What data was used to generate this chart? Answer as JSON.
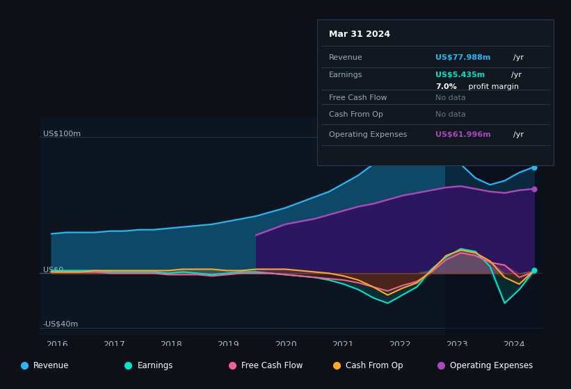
{
  "bg_color": "#0d1117",
  "plot_bg_color": "#0d1520",
  "y_label_top": "US$100m",
  "y_label_zero": "US$0",
  "y_label_bottom": "-US$40m",
  "ylim": [
    -45,
    115
  ],
  "xlim": [
    2015.7,
    2024.5
  ],
  "x_ticks": [
    2016,
    2017,
    2018,
    2019,
    2020,
    2021,
    2022,
    2023,
    2024
  ],
  "tooltip_title": "Mar 31 2024",
  "tooltip_rows": [
    {
      "label": "Revenue",
      "value": "US$77.988m",
      "unit": "/yr",
      "label_color": "#9aaabb",
      "value_color": "#29b6f6",
      "unit_color": "#ffffff"
    },
    {
      "label": "Earnings",
      "value": "US$5.435m",
      "unit": "/yr",
      "label_color": "#9aaabb",
      "value_color": "#00e5cc",
      "unit_color": "#ffffff"
    },
    {
      "label": "",
      "value": "7.0%",
      "unit": " profit margin",
      "label_color": "#9aaabb",
      "value_color": "#ffffff",
      "unit_color": "#ffffff"
    },
    {
      "label": "Free Cash Flow",
      "value": "No data",
      "unit": "",
      "label_color": "#9aaabb",
      "value_color": "#667788",
      "unit_color": "#ffffff"
    },
    {
      "label": "Cash From Op",
      "value": "No data",
      "unit": "",
      "label_color": "#9aaabb",
      "value_color": "#667788",
      "unit_color": "#ffffff"
    },
    {
      "label": "Operating Expenses",
      "value": "US$61.996m",
      "unit": "/yr",
      "label_color": "#9aaabb",
      "value_color": "#ab47bc",
      "unit_color": "#ffffff"
    }
  ],
  "legend": [
    {
      "label": "Revenue",
      "color": "#29b6f6"
    },
    {
      "label": "Earnings",
      "color": "#00e5cc"
    },
    {
      "label": "Free Cash Flow",
      "color": "#f06292"
    },
    {
      "label": "Cash From Op",
      "color": "#ffa726"
    },
    {
      "label": "Operating Expenses",
      "color": "#ab47bc"
    }
  ],
  "revenue_color": "#29b6f6",
  "revenue_fill": "#0d4f6e",
  "opex_color": "#ab47bc",
  "opex_fill": "#2d1560",
  "earnings_color": "#00e5cc",
  "fcf_color": "#f06292",
  "fcf_neg_fill": "#5a1020",
  "cashop_color": "#ffa726",
  "cashop_pos_fill": "#ffa726",
  "dark_band_start": 2022.8,
  "dark_band_color": "#060d18",
  "dark_band_alpha": 0.5
}
